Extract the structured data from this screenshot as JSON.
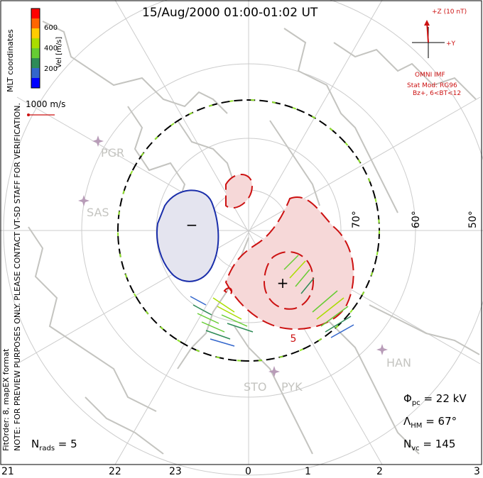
{
  "title": "15/Aug/2000 01:00-01:02 UT",
  "side_labels": {
    "mlt": "MLT coordinates",
    "note": "NOTE: FOR PREVIEW PURPOSES ONLY. PLEASE CONTACT VT-SD STAFF FOR VERIFICATION.",
    "fit": "FitOrder: 8, mapEX format"
  },
  "color_scale": {
    "label": "Vel [m/s]",
    "ticks": [
      "600",
      "400",
      "200"
    ],
    "colors": [
      "#0000ff",
      "#3366cc",
      "#2e8b57",
      "#66cc33",
      "#aadd00",
      "#ffcc00",
      "#ff6600",
      "#ff0000"
    ]
  },
  "velocity_scale": "1000 m/s",
  "imf": {
    "z_label": "+Z (10 nT)",
    "y_label": "+Y",
    "source": "OMNI IMF",
    "model": "Stat Mod: RG96",
    "bin": "Bz+, 6<BT<12"
  },
  "radars": [
    "PGR",
    "SAS",
    "HAN",
    "STO",
    "PYK"
  ],
  "latitude_labels": [
    "70°",
    "60°",
    "50°"
  ],
  "contour_labels": {
    "minus": "−",
    "plus": "+",
    "value": "5"
  },
  "stats": {
    "phi_sym": "Φ",
    "phi_sub": "pc",
    "phi_val": " = 22 kV",
    "lam_sym": "Λ",
    "lam_sub": "HM",
    "lam_val": " = 67°",
    "nvc_sym": "N",
    "nvc_sub": "vc",
    "nvc_val": " = 145",
    "nrads_sym": "N",
    "nrads_sub": "rads",
    "nrads_val": " = 5"
  },
  "mlt_axis": [
    "21",
    "22",
    "23",
    "0",
    "1",
    "2",
    "3"
  ],
  "colors": {
    "negative_fill": "#e4e4ef",
    "negative_line": "#1a2eaa",
    "positive_fill": "#f6d8d8",
    "positive_line": "#cc1111",
    "grid": "#cccccc",
    "coast": "#c4c4c0",
    "radar": "#b89cb8"
  }
}
